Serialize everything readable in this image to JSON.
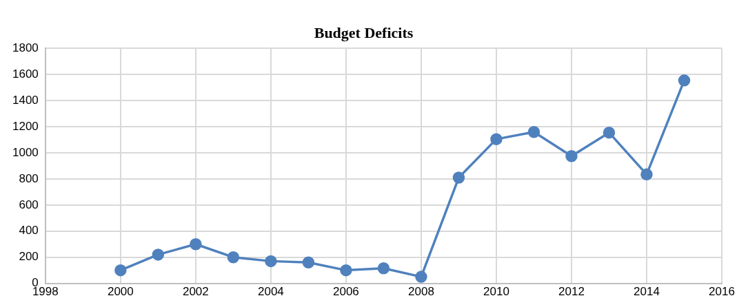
{
  "chart_data": {
    "type": "line",
    "title": "Budget Deficits",
    "x": [
      2000,
      2001,
      2002,
      2003,
      2004,
      2005,
      2006,
      2007,
      2008,
      2009,
      2010,
      2011,
      2012,
      2013,
      2014,
      2015
    ],
    "series": [
      {
        "color": "#4f81bd",
        "values": [
          100,
          220,
          300,
          200,
          170,
          160,
          100,
          115,
          50,
          810,
          1105,
          1160,
          975,
          1155,
          835,
          1555
        ]
      }
    ],
    "xlim": [
      1998,
      2016
    ],
    "xticks": [
      1998,
      2000,
      2002,
      2004,
      2006,
      2008,
      2010,
      2012,
      2014,
      2016
    ],
    "ylim": [
      0,
      1800
    ],
    "yticks": [
      0,
      200,
      400,
      600,
      800,
      1000,
      1200,
      1400,
      1600,
      1800
    ],
    "grid": true,
    "legend": false,
    "marker": "circle",
    "line_style": "solid"
  }
}
